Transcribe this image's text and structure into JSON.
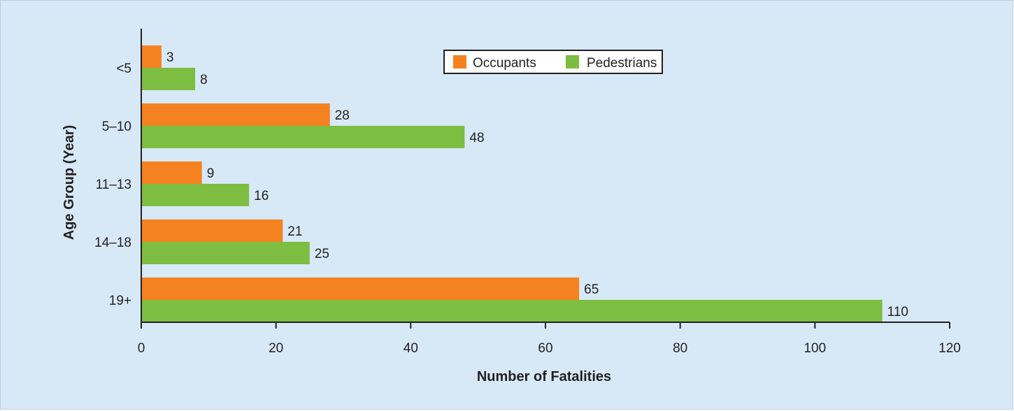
{
  "chart_data": {
    "type": "bar",
    "orientation": "horizontal",
    "categories": [
      "<5",
      "5–10",
      "11–13",
      "14–18",
      "19+"
    ],
    "series": [
      {
        "name": "Occupants",
        "color": "#f58220",
        "values": [
          3,
          28,
          9,
          21,
          65
        ]
      },
      {
        "name": "Pedestrians",
        "color": "#7dbd42",
        "values": [
          8,
          48,
          16,
          25,
          110
        ]
      }
    ],
    "xlabel": "Number of Fatalities",
    "ylabel": "Age Group (Year)",
    "xlim": [
      0,
      120
    ],
    "xticks": [
      0,
      20,
      40,
      60,
      80,
      100,
      120
    ],
    "grid": false,
    "legend_position": "top-right",
    "background_color": "#d7e9f7"
  }
}
